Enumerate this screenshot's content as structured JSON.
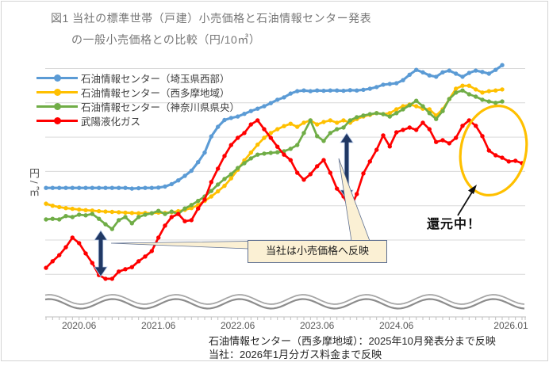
{
  "figure": {
    "title_line1": "図1 当社の標準世帯（戸建）小売価格と石油情報センター発表",
    "title_line2": "の一般小売価格との比較（円/10㎥）"
  },
  "y_axis": {
    "label": "円/㎥",
    "numeric_tick_labels_shown": false
  },
  "annotations": {
    "callout": "当社は小売価格へ反映",
    "kangen": "還元中！",
    "ellipse_color": "#FFC000",
    "arrow_color": "#203864"
  },
  "notes": [
    "石油情報センター（西多摩地域）：2025年10月発表分まで反映",
    "当社：2026年1月分ガス料金まで反映"
  ],
  "chart_data": {
    "type": "line",
    "title": "図1 当社の標準世帯（戸建）小売価格と石油情報センター発表の一般小売価格との比較（円/10㎥）",
    "x_start": "2020.01",
    "x_step": "1 month",
    "x_ticks": [
      {
        "label": "2020.06",
        "m": 5
      },
      {
        "label": "2021.06",
        "m": 17
      },
      {
        "label": "2022.06",
        "m": 29
      },
      {
        "label": "2023.06",
        "m": 41
      },
      {
        "label": "2024.06",
        "m": 53
      },
      {
        "label": "2026.01",
        "m": 72
      }
    ],
    "ylabel": "円/㎥",
    "y_unit_note": "y axis has no numeric labels; values are in gridline units above the x-axis (7 gridlines shown)",
    "ylim": [
      0,
      7.3
    ],
    "grid": true,
    "legend_position": "top-left inside plot",
    "series": [
      {
        "key": "oil-center-saitama",
        "name": "石油情報センター（埼玉県西部）",
        "color": "#5B9BD5",
        "end": "2025.10",
        "values": [
          3.52,
          3.52,
          3.52,
          3.52,
          3.52,
          3.52,
          3.52,
          3.52,
          3.52,
          3.52,
          3.52,
          3.52,
          3.52,
          3.5,
          3.51,
          3.52,
          3.52,
          3.53,
          3.56,
          3.63,
          3.74,
          3.87,
          4.02,
          4.27,
          4.55,
          5.02,
          5.3,
          5.5,
          5.56,
          5.6,
          5.68,
          5.76,
          5.83,
          5.9,
          5.99,
          6.09,
          6.16,
          6.27,
          6.34,
          6.36,
          6.34,
          6.36,
          6.35,
          6.36,
          6.36,
          6.35,
          6.37,
          6.36,
          6.38,
          6.41,
          6.46,
          6.53,
          6.55,
          6.57,
          6.66,
          6.82,
          6.96,
          6.89,
          6.8,
          6.76,
          6.89,
          6.94,
          6.85,
          6.76,
          6.87,
          6.94,
          6.9,
          6.85,
          6.96,
          7.1
        ]
      },
      {
        "key": "oil-center-nishitama",
        "name": "石油情報センター（西多摩地域）",
        "color": "#FFC000",
        "end": "2025.10",
        "values": [
          3.06,
          3.0,
          2.96,
          2.93,
          2.91,
          2.89,
          2.87,
          2.86,
          2.84,
          2.83,
          2.82,
          2.81,
          2.8,
          2.79,
          2.78,
          2.79,
          2.78,
          2.8,
          2.79,
          2.81,
          2.84,
          2.88,
          2.93,
          3.02,
          3.14,
          3.27,
          3.42,
          3.58,
          3.8,
          4.05,
          4.32,
          4.55,
          4.78,
          4.98,
          5.12,
          5.23,
          5.32,
          5.39,
          5.3,
          5.42,
          5.49,
          5.37,
          5.44,
          5.49,
          5.42,
          5.49,
          5.42,
          5.53,
          5.6,
          5.65,
          5.7,
          5.67,
          5.7,
          5.81,
          5.9,
          5.95,
          5.9,
          5.83,
          5.81,
          5.63,
          5.81,
          6.11,
          6.41,
          6.5,
          6.5,
          6.39,
          6.3,
          6.34,
          6.36,
          6.39
        ]
      },
      {
        "key": "oil-center-kanagawa",
        "name": "石油情報センター（神奈川県県央）",
        "color": "#70AD47",
        "end": "2025.10",
        "values": [
          2.6,
          2.62,
          2.6,
          2.7,
          2.67,
          2.74,
          2.72,
          2.76,
          2.62,
          2.46,
          2.32,
          2.58,
          2.67,
          2.49,
          2.67,
          2.74,
          2.78,
          2.85,
          2.76,
          2.83,
          2.76,
          2.92,
          3.02,
          3.14,
          3.27,
          3.43,
          3.62,
          3.78,
          3.92,
          4.1,
          4.24,
          4.38,
          4.49,
          4.52,
          4.54,
          4.56,
          4.59,
          4.66,
          4.77,
          5.12,
          5.49,
          5.03,
          4.89,
          5.12,
          5.23,
          5.28,
          5.49,
          5.58,
          5.63,
          5.67,
          5.7,
          5.67,
          5.6,
          5.7,
          5.81,
          5.93,
          6.06,
          5.9,
          5.7,
          5.53,
          5.76,
          6.11,
          6.3,
          6.36,
          6.25,
          6.18,
          6.09,
          6.04,
          6.0,
          6.04
        ]
      },
      {
        "key": "buyou-lp-gas",
        "name": "武陽液化ガス",
        "color": "#FF0000",
        "end": "2026.01",
        "values": [
          1.19,
          1.38,
          1.56,
          1.79,
          2.07,
          1.91,
          1.61,
          1.33,
          0.98,
          0.87,
          0.87,
          1.08,
          1.15,
          1.21,
          1.38,
          1.52,
          1.68,
          2.07,
          2.42,
          2.67,
          2.76,
          2.55,
          2.58,
          2.92,
          3.18,
          3.69,
          4.08,
          4.45,
          4.77,
          4.98,
          5.12,
          5.37,
          5.49,
          5.23,
          4.98,
          4.72,
          4.49,
          4.33,
          3.96,
          3.76,
          3.92,
          4.15,
          4.33,
          3.96,
          3.5,
          3.27,
          2.9,
          3.34,
          3.94,
          4.29,
          4.63,
          5.05,
          4.73,
          5.14,
          5.21,
          5.28,
          5.21,
          5.42,
          5.23,
          4.86,
          4.91,
          4.82,
          4.98,
          5.33,
          5.49,
          5.33,
          5.03,
          4.61,
          4.47,
          4.4,
          4.29,
          4.31,
          4.24
        ]
      }
    ]
  }
}
